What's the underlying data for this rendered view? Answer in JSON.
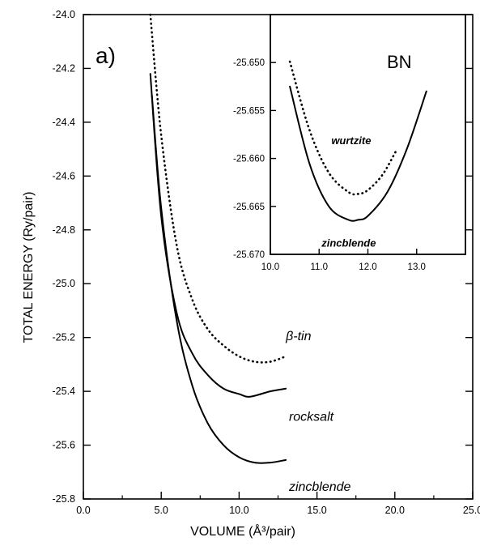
{
  "chart_data": [
    {
      "type": "line",
      "panel_label": "a)",
      "xlabel": "VOLUME (Å³/pair)",
      "ylabel": "TOTAL ENERGY (Ry/pair)",
      "xlim": [
        0.0,
        25.0
      ],
      "ylim": [
        -25.8,
        -24.0
      ],
      "x_ticks": [
        "0.0",
        "5.0",
        "10.0",
        "15.0",
        "20.0",
        "25.0"
      ],
      "y_ticks": [
        "-24.0",
        "-24.2",
        "-24.4",
        "-24.6",
        "-24.8",
        "-25.0",
        "-25.2",
        "-25.4",
        "-25.6",
        "-25.8"
      ],
      "series": [
        {
          "name": "β-tin",
          "style": "dotted",
          "x": [
            4.3,
            5.0,
            6.0,
            7.0,
            8.0,
            9.0,
            10.0,
            11.0,
            12.0,
            13.0
          ],
          "y": [
            -24.0,
            -24.45,
            -24.86,
            -25.06,
            -25.17,
            -25.23,
            -25.27,
            -25.29,
            -25.29,
            -25.27
          ]
        },
        {
          "name": "rocksalt",
          "style": "solid",
          "x": [
            4.3,
            5.0,
            6.0,
            7.0,
            8.0,
            9.0,
            10.0,
            10.7,
            12.0,
            13.0
          ],
          "y": [
            -24.22,
            -24.75,
            -25.11,
            -25.26,
            -25.34,
            -25.39,
            -25.41,
            -25.42,
            -25.4,
            -25.39
          ]
        },
        {
          "name": "zincblende",
          "style": "solid",
          "x": [
            4.4,
            5.0,
            6.0,
            7.0,
            8.0,
            9.0,
            10.0,
            11.0,
            12.0,
            13.0
          ],
          "y": [
            -24.3,
            -24.72,
            -25.14,
            -25.38,
            -25.52,
            -25.6,
            -25.645,
            -25.665,
            -25.665,
            -25.655
          ]
        }
      ],
      "curve_labels": [
        {
          "text": "β-tin",
          "x": 13.0,
          "y": -25.21
        },
        {
          "text": "rocksalt",
          "x": 13.2,
          "y": -25.51
        },
        {
          "text": "zincblende",
          "x": 13.2,
          "y": -25.77
        }
      ]
    },
    {
      "type": "line",
      "inset": true,
      "material_label": "BN",
      "xlim": [
        10.0,
        14.0
      ],
      "ylim": [
        -25.67,
        -25.645
      ],
      "x_ticks": [
        "10.0",
        "11.0",
        "12.0",
        "13.0"
      ],
      "y_ticks": [
        "-25.650",
        "-25.655",
        "-25.660",
        "-25.665",
        "-25.670"
      ],
      "series": [
        {
          "name": "wurtzite",
          "style": "dotted",
          "x": [
            10.4,
            10.8,
            11.2,
            11.6,
            11.8,
            12.0,
            12.3,
            12.6
          ],
          "y": [
            -25.6499,
            -25.657,
            -25.6615,
            -25.6635,
            -25.6637,
            -25.6633,
            -25.6617,
            -25.659
          ]
        },
        {
          "name": "zincblende",
          "style": "solid",
          "x": [
            10.4,
            10.8,
            11.2,
            11.6,
            11.8,
            12.0,
            12.4,
            12.8,
            13.2
          ],
          "y": [
            -25.6525,
            -25.6605,
            -25.665,
            -25.6664,
            -25.6664,
            -25.666,
            -25.6635,
            -25.659,
            -25.653
          ]
        }
      ],
      "curve_labels": [
        {
          "text": "wurtzite",
          "x": 11.25,
          "y": -25.6585
        },
        {
          "text": "zincblende",
          "x": 11.05,
          "y": -25.6692
        }
      ]
    }
  ]
}
